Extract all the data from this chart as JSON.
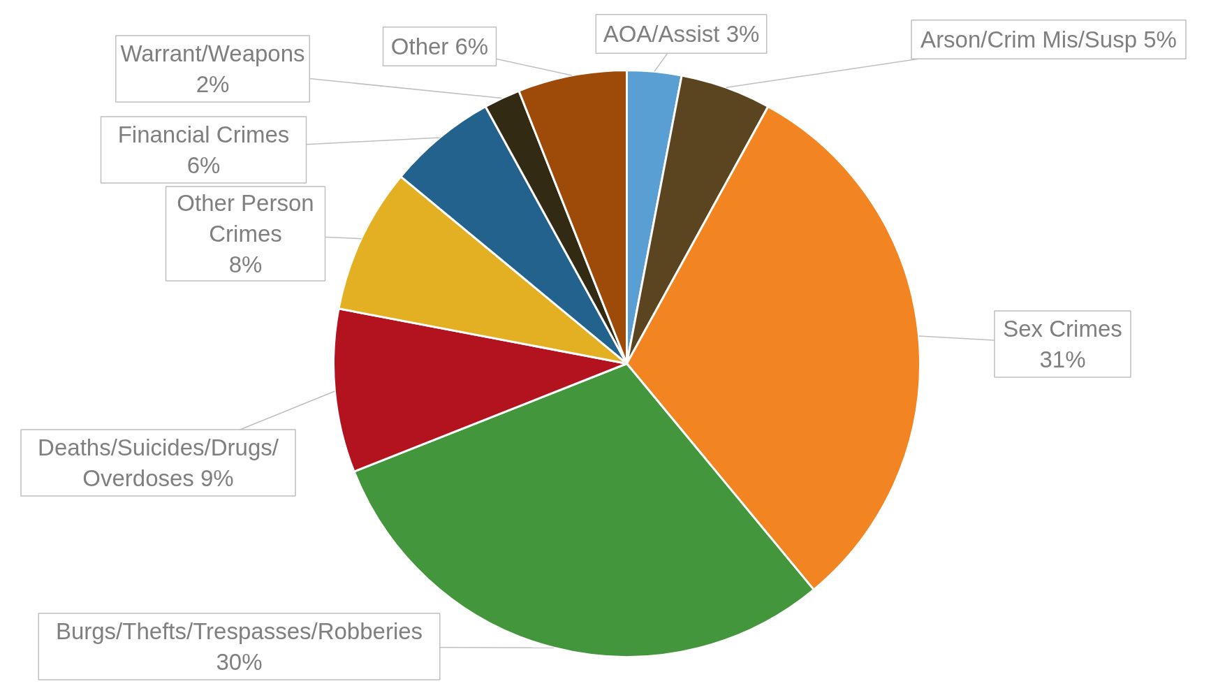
{
  "chart_data": {
    "type": "pie",
    "categories": [
      "AOA/Assist",
      "Arson/Crim Mis/Susp",
      "Sex Crimes",
      "Burgs/Thefts/Trespasses/Robberies",
      "Deaths/Suicides/Drugs/Overdoses",
      "Other Person Crimes",
      "Financial Crimes",
      "Warrant/Weapons",
      "Other"
    ],
    "values": [
      3,
      5,
      31,
      30,
      9,
      8,
      6,
      2,
      6
    ],
    "value_labels": [
      "3%",
      "5%",
      "31%",
      "30%",
      "9%",
      "8%",
      "6%",
      "2%",
      "6%"
    ],
    "colors": [
      "#5a9fd4",
      "#5b4520",
      "#f28422",
      "#43963b",
      "#b3131e",
      "#e3b023",
      "#22628c",
      "#332a14",
      "#9e4a08"
    ]
  }
}
